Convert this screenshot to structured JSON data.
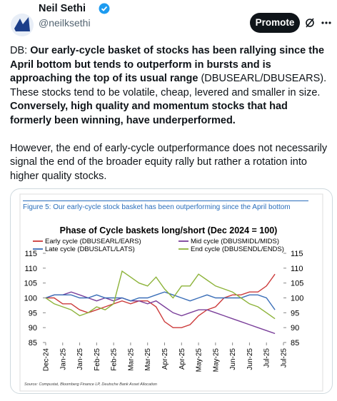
{
  "header": {
    "name": "Neil Sethi",
    "handle": "@neilksethi",
    "button": "Promote"
  },
  "tweet": {
    "paragraphs": [
      [
        {
          "text": "DB: ",
          "bold": false
        },
        {
          "text": "Our early-cycle basket of stocks has been rallying since the April bottom but tends to outperform in bursts and is approaching the top of its usual range",
          "bold": true
        },
        {
          "text": " (DBUSEARL/DBUSEARS). These stocks tend to be volatile, cheap, levered and smaller in size. ",
          "bold": false
        },
        {
          "text": "Conversely, high quality and momentum stocks that had formerly been winning, have underperformed.",
          "bold": true
        }
      ],
      [
        {
          "text": "However, the end of early-cycle outperformance does not necessarily signal the end of the broader equity rally but rather a rotation into higher quality stocks.",
          "bold": false
        }
      ]
    ]
  },
  "chart_data": {
    "type": "line",
    "caption": "Figure 5: Our early-cycle stock basket has been outperforming since the April bottom",
    "title": "Phase of Cycle baskets long/short (Dec 2024 = 100)",
    "source": "Source: Compustat, Bloomberg Finance LP, Deutsche Bank Asset Allocation",
    "x": [
      0,
      0.5,
      1,
      1.5,
      2,
      2.5,
      3,
      3.5,
      4,
      4.5,
      5,
      5.5,
      6,
      6.5,
      7,
      7.5,
      8,
      8.5,
      9,
      9.5,
      10,
      10.5,
      11,
      11.5,
      12,
      12.5,
      13,
      13.5
    ],
    "xlim": [
      0,
      14
    ],
    "xticks": [
      {
        "value": 0,
        "label": "Dec-24"
      },
      {
        "value": 1,
        "label": "Jan-25"
      },
      {
        "value": 2,
        "label": "Jan-25"
      },
      {
        "value": 3,
        "label": "Feb-25"
      },
      {
        "value": 4,
        "label": "Feb-25"
      },
      {
        "value": 5,
        "label": "Mar-25"
      },
      {
        "value": 6,
        "label": "Mar-25"
      },
      {
        "value": 7,
        "label": "Apr-25"
      },
      {
        "value": 8,
        "label": "Apr-25"
      },
      {
        "value": 9,
        "label": "May-25"
      },
      {
        "value": 10,
        "label": "May-25"
      },
      {
        "value": 11,
        "label": "Jun-25"
      },
      {
        "value": 12,
        "label": "Jun-25"
      },
      {
        "value": 13,
        "label": "Jul-25"
      },
      {
        "value": 14,
        "label": "Jul-25"
      }
    ],
    "ylim": [
      85,
      115
    ],
    "yticks": [
      85,
      90,
      95,
      100,
      105,
      110,
      115
    ],
    "y2lim": [
      85,
      115
    ],
    "y2ticks": [
      85,
      90,
      95,
      100,
      105,
      110,
      115
    ],
    "grid": false,
    "series": [
      {
        "name": "Early cycle (DBUSEARL/EARS)",
        "color": "#cc3b3b",
        "values": [
          100,
          100,
          98,
          98,
          96,
          95,
          96,
          97,
          98,
          99,
          98,
          99,
          99,
          97,
          92,
          90,
          90,
          91,
          94,
          96,
          97,
          100,
          101,
          101,
          102,
          102,
          104,
          108
        ]
      },
      {
        "name": "Mid cycle (DBUSMIDL/MIDS)",
        "color": "#7a3f9a",
        "values": [
          100,
          101,
          101,
          102,
          101,
          100,
          99,
          100,
          99,
          100,
          99,
          99,
          98,
          99,
          97,
          95,
          94,
          95,
          96,
          96,
          95,
          94,
          93,
          92,
          91,
          90,
          89,
          88
        ]
      },
      {
        "name": "Late cycle (DBUSLATL/LATS)",
        "color": "#3b6fb8",
        "values": [
          100,
          101,
          101,
          101,
          100,
          100,
          101,
          100,
          100,
          100,
          99,
          100,
          100,
          101,
          102,
          101,
          100,
          99,
          100,
          101,
          100,
          100,
          100,
          100,
          101,
          101,
          100,
          96
        ]
      },
      {
        "name": "End cycle (DBUSENDL/ENDS)",
        "color": "#8db33a",
        "values": [
          100,
          98,
          97,
          96,
          94,
          95,
          97,
          96,
          98,
          109,
          107,
          105,
          104,
          107,
          103,
          100,
          104,
          104,
          108,
          106,
          104,
          103,
          102,
          100,
          98,
          97,
          95,
          93
        ]
      }
    ]
  }
}
